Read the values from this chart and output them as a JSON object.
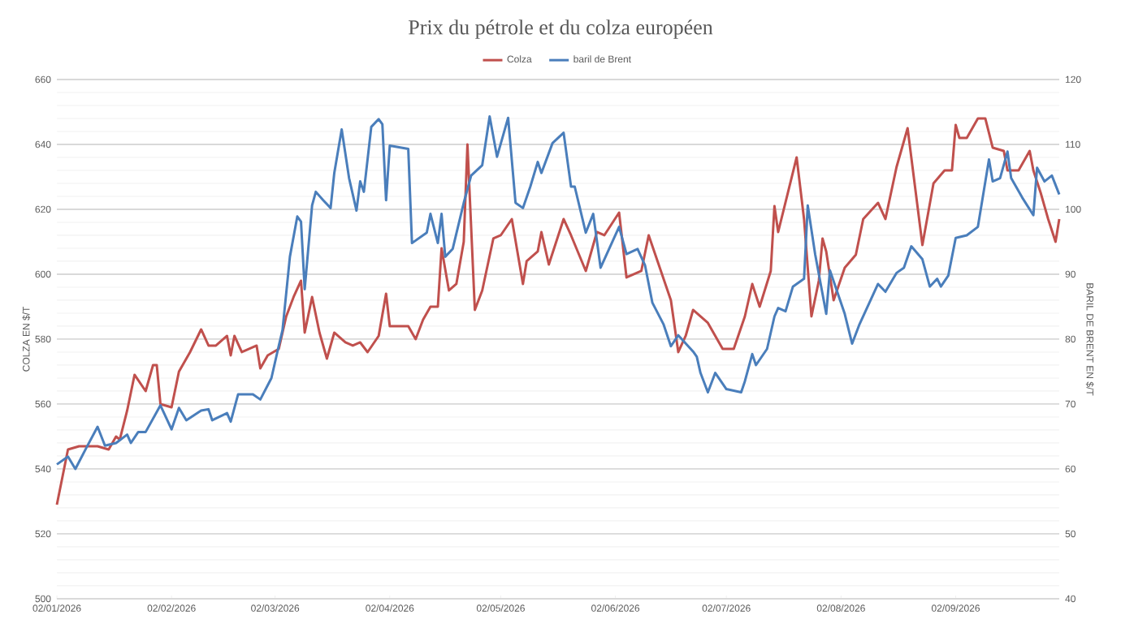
{
  "chart_data": {
    "type": "line",
    "title": "Prix du pétrole et du colza européen",
    "ylabel": "COLZA EN $/T",
    "y2label": "BARIL DE BRENT EN $/T",
    "xlim": [
      "2026-01-02",
      "2026-09-30"
    ],
    "xticks": [
      {
        "value": "2026-01-02",
        "label": "02/01/2026"
      },
      {
        "value": "2026-02-02",
        "label": "02/02/2026"
      },
      {
        "value": "2026-03-02",
        "label": "02/03/2026"
      },
      {
        "value": "2026-04-02",
        "label": "02/04/2026"
      },
      {
        "value": "2026-05-02",
        "label": "02/05/2026"
      },
      {
        "value": "2026-06-02",
        "label": "02/06/2026"
      },
      {
        "value": "2026-07-02",
        "label": "02/07/2026"
      },
      {
        "value": "2026-08-02",
        "label": "02/08/2026"
      },
      {
        "value": "2026-09-02",
        "label": "02/09/2026"
      }
    ],
    "ylim": [
      500,
      660
    ],
    "yticks": [
      500,
      520,
      540,
      560,
      580,
      600,
      620,
      640,
      660
    ],
    "y2lim": [
      40,
      120
    ],
    "y2ticks": [
      40,
      50,
      60,
      70,
      80,
      90,
      100,
      110,
      120
    ],
    "grid": "y",
    "legend": "top",
    "line_style": "solid",
    "marker": "none",
    "series": [
      {
        "name": "Colza",
        "color": "#c0504d",
        "axis": "y",
        "x": [
          "2026-01-02",
          "2026-01-05",
          "2026-01-08",
          "2026-01-13",
          "2026-01-16",
          "2026-01-18",
          "2026-01-19",
          "2026-01-21",
          "2026-01-23",
          "2026-01-26",
          "2026-01-28",
          "2026-01-29",
          "2026-01-30",
          "2026-02-02",
          "2026-02-04",
          "2026-02-07",
          "2026-02-10",
          "2026-02-12",
          "2026-02-14",
          "2026-02-17",
          "2026-02-18",
          "2026-02-19",
          "2026-02-21",
          "2026-02-25",
          "2026-02-26",
          "2026-02-28",
          "2026-03-03",
          "2026-03-05",
          "2026-03-07",
          "2026-03-09",
          "2026-03-10",
          "2026-03-12",
          "2026-03-14",
          "2026-03-16",
          "2026-03-18",
          "2026-03-21",
          "2026-03-23",
          "2026-03-25",
          "2026-03-27",
          "2026-03-30",
          "2026-04-01",
          "2026-04-02",
          "2026-04-07",
          "2026-04-09",
          "2026-04-11",
          "2026-04-13",
          "2026-04-15",
          "2026-04-16",
          "2026-04-18",
          "2026-04-20",
          "2026-04-22",
          "2026-04-23",
          "2026-04-25",
          "2026-04-27",
          "2026-04-30",
          "2026-05-02",
          "2026-05-05",
          "2026-05-08",
          "2026-05-09",
          "2026-05-12",
          "2026-05-13",
          "2026-05-15",
          "2026-05-19",
          "2026-05-21",
          "2026-05-25",
          "2026-05-28",
          "2026-05-30",
          "2026-06-03",
          "2026-06-05",
          "2026-06-09",
          "2026-06-11",
          "2026-06-14",
          "2026-06-17",
          "2026-06-19",
          "2026-06-21",
          "2026-06-23",
          "2026-06-25",
          "2026-06-27",
          "2026-07-01",
          "2026-07-04",
          "2026-07-07",
          "2026-07-09",
          "2026-07-11",
          "2026-07-14",
          "2026-07-15",
          "2026-07-16",
          "2026-07-21",
          "2026-07-23",
          "2026-07-25",
          "2026-07-27",
          "2026-07-28",
          "2026-07-29",
          "2026-07-31",
          "2026-08-03",
          "2026-08-06",
          "2026-08-08",
          "2026-08-12",
          "2026-08-14",
          "2026-08-17",
          "2026-08-20",
          "2026-08-22",
          "2026-08-24",
          "2026-08-27",
          "2026-08-30",
          "2026-09-01",
          "2026-09-02",
          "2026-09-03",
          "2026-09-05",
          "2026-09-08",
          "2026-09-10",
          "2026-09-12",
          "2026-09-15",
          "2026-09-16",
          "2026-09-19",
          "2026-09-22",
          "2026-09-23",
          "2026-09-25",
          "2026-09-27",
          "2026-09-29",
          "2026-09-30"
        ],
        "values": [
          529,
          546,
          547,
          547,
          546,
          550,
          549,
          558,
          569,
          564,
          572,
          572,
          560,
          559,
          570,
          576,
          583,
          578,
          578,
          581,
          575,
          581,
          576,
          578,
          571,
          575,
          577,
          587,
          593,
          598,
          582,
          593,
          582,
          574,
          582,
          579,
          578,
          579,
          576,
          581,
          594,
          584,
          584,
          580,
          586,
          590,
          590,
          608,
          595,
          597,
          610,
          640,
          589,
          595,
          611,
          612,
          617,
          597,
          604,
          607,
          613,
          603,
          617,
          612,
          601,
          613,
          612,
          619,
          599,
          601,
          612,
          602,
          592,
          576,
          581,
          589,
          587,
          585,
          577,
          577,
          587,
          597,
          590,
          601,
          621,
          613,
          636,
          617,
          587,
          598,
          611,
          607,
          592,
          602,
          606,
          617,
          622,
          617,
          633,
          645,
          627,
          609,
          628,
          632,
          632,
          646,
          642,
          642,
          648,
          648,
          639,
          638,
          632,
          632,
          638,
          632,
          625,
          617,
          610,
          617
        ]
      },
      {
        "name": "baril de Brent",
        "color": "#4a7ebb",
        "axis": "y2",
        "x": [
          "2026-01-02",
          "2026-01-05",
          "2026-01-07",
          "2026-01-10",
          "2026-01-13",
          "2026-01-15",
          "2026-01-18",
          "2026-01-21",
          "2026-01-22",
          "2026-01-24",
          "2026-01-26",
          "2026-01-30",
          "2026-02-02",
          "2026-02-04",
          "2026-02-06",
          "2026-02-10",
          "2026-02-12",
          "2026-02-13",
          "2026-02-17",
          "2026-02-18",
          "2026-02-20",
          "2026-02-24",
          "2026-02-26",
          "2026-03-01",
          "2026-03-03",
          "2026-03-04",
          "2026-03-06",
          "2026-03-08",
          "2026-03-09",
          "2026-03-10",
          "2026-03-12",
          "2026-03-13",
          "2026-03-15",
          "2026-03-17",
          "2026-03-18",
          "2026-03-20",
          "2026-03-22",
          "2026-03-24",
          "2026-03-25",
          "2026-03-26",
          "2026-03-28",
          "2026-03-30",
          "2026-03-31",
          "2026-04-01",
          "2026-04-02",
          "2026-04-07",
          "2026-04-08",
          "2026-04-10",
          "2026-04-12",
          "2026-04-13",
          "2026-04-15",
          "2026-04-16",
          "2026-04-17",
          "2026-04-19",
          "2026-04-22",
          "2026-04-24",
          "2026-04-27",
          "2026-04-29",
          "2026-05-01",
          "2026-05-04",
          "2026-05-06",
          "2026-05-08",
          "2026-05-10",
          "2026-05-12",
          "2026-05-13",
          "2026-05-16",
          "2026-05-19",
          "2026-05-21",
          "2026-05-22",
          "2026-05-25",
          "2026-05-27",
          "2026-05-29",
          "2026-06-03",
          "2026-06-05",
          "2026-06-08",
          "2026-06-10",
          "2026-06-12",
          "2026-06-15",
          "2026-06-17",
          "2026-06-19",
          "2026-06-23",
          "2026-06-24",
          "2026-06-25",
          "2026-06-27",
          "2026-06-29",
          "2026-07-02",
          "2026-07-06",
          "2026-07-07",
          "2026-07-09",
          "2026-07-10",
          "2026-07-13",
          "2026-07-15",
          "2026-07-16",
          "2026-07-18",
          "2026-07-20",
          "2026-07-23",
          "2026-07-24",
          "2026-07-26",
          "2026-07-29",
          "2026-07-30",
          "2026-08-03",
          "2026-08-05",
          "2026-08-07",
          "2026-08-12",
          "2026-08-14",
          "2026-08-17",
          "2026-08-19",
          "2026-08-21",
          "2026-08-24",
          "2026-08-26",
          "2026-08-28",
          "2026-08-29",
          "2026-08-31",
          "2026-09-02",
          "2026-09-05",
          "2026-09-08",
          "2026-09-11",
          "2026-09-12",
          "2026-09-14",
          "2026-09-16",
          "2026-09-17",
          "2026-09-20",
          "2026-09-23",
          "2026-09-24",
          "2026-09-26",
          "2026-09-28",
          "2026-09-30"
        ],
        "values": [
          60.7,
          61.9,
          60,
          63.3,
          66.5,
          63.6,
          64,
          65.3,
          64,
          65.7,
          65.7,
          69.8,
          66.1,
          69.4,
          67.5,
          69,
          69.2,
          67.5,
          68.6,
          67.3,
          71.5,
          71.5,
          70.7,
          74,
          79,
          81.4,
          92.7,
          98.9,
          98.1,
          87.7,
          100.6,
          102.7,
          101.4,
          100.2,
          105.6,
          112.3,
          104.8,
          99.8,
          104.3,
          102.7,
          112.7,
          113.9,
          113.1,
          101.4,
          109.8,
          109.3,
          94.8,
          95.6,
          96.4,
          99.3,
          94.8,
          99.3,
          92.7,
          93.9,
          101,
          105.2,
          106.8,
          114.3,
          108.1,
          114.1,
          101,
          100.2,
          103.5,
          107.3,
          105.6,
          110.2,
          111.8,
          103.5,
          103.5,
          96.4,
          99.3,
          91,
          97.3,
          93.1,
          93.9,
          91.4,
          85.6,
          82.3,
          78.9,
          80.6,
          78.1,
          77.3,
          74.8,
          71.8,
          74.8,
          72.3,
          71.8,
          73.5,
          77.7,
          76,
          78.5,
          83.5,
          84.8,
          84.3,
          88.1,
          89.3,
          100.6,
          93.1,
          83.9,
          90.6,
          83.9,
          79.3,
          82.3,
          88.5,
          87.3,
          90.2,
          91,
          94.3,
          92.3,
          88.1,
          89.3,
          88.1,
          89.8,
          95.6,
          96,
          97.3,
          107.7,
          104.3,
          104.8,
          108.9,
          104.8,
          101.8,
          99.1,
          106.4,
          104.3,
          105.2,
          102.3
        ]
      }
    ]
  }
}
